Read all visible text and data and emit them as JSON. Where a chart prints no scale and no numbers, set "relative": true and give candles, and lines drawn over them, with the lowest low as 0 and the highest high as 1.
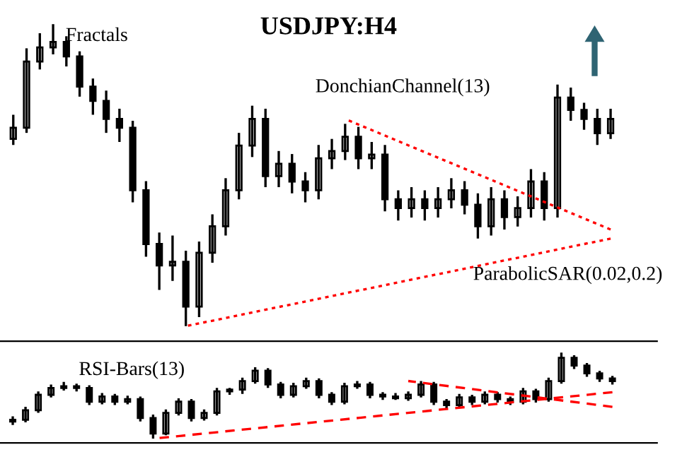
{
  "chart_data": [
    {
      "type": "candlestick",
      "title": "USDJPY:H4",
      "relative": true,
      "categories": [
        null,
        null,
        null,
        null,
        null,
        null,
        null,
        null,
        null,
        null,
        null,
        null,
        null,
        null,
        null,
        null,
        null,
        null,
        null,
        null,
        null,
        null,
        null,
        null,
        null,
        null,
        null,
        null,
        null,
        null,
        null,
        null,
        null,
        null,
        null,
        null,
        null,
        null,
        null,
        null,
        null,
        null,
        null,
        null,
        null,
        null
      ],
      "ohlc": [
        [
          0.62,
          0.7,
          0.6,
          0.657
        ],
        [
          0.657,
          0.92,
          0.64,
          0.876
        ],
        [
          0.876,
          0.97,
          0.85,
          0.923
        ],
        [
          0.923,
          1.0,
          0.9,
          0.941
        ],
        [
          0.941,
          0.96,
          0.86,
          0.893
        ],
        [
          0.893,
          0.91,
          0.76,
          0.793
        ],
        [
          0.793,
          0.82,
          0.7,
          0.746
        ],
        [
          0.746,
          0.78,
          0.64,
          0.686
        ],
        [
          0.686,
          0.72,
          0.61,
          0.657
        ],
        [
          0.657,
          0.68,
          0.41,
          0.45
        ],
        [
          0.45,
          0.48,
          0.23,
          0.272
        ],
        [
          0.272,
          0.31,
          0.12,
          0.201
        ],
        [
          0.201,
          0.3,
          0.15,
          0.213
        ],
        [
          0.213,
          0.25,
          0.0,
          0.065
        ],
        [
          0.065,
          0.28,
          0.03,
          0.243
        ],
        [
          0.243,
          0.37,
          0.21,
          0.331
        ],
        [
          0.331,
          0.49,
          0.3,
          0.45
        ],
        [
          0.45,
          0.64,
          0.42,
          0.598
        ],
        [
          0.598,
          0.73,
          0.56,
          0.686
        ],
        [
          0.686,
          0.72,
          0.46,
          0.497
        ],
        [
          0.497,
          0.58,
          0.46,
          0.538
        ],
        [
          0.538,
          0.57,
          0.44,
          0.479
        ],
        [
          0.479,
          0.51,
          0.41,
          0.45
        ],
        [
          0.45,
          0.6,
          0.42,
          0.556
        ],
        [
          0.556,
          0.62,
          0.52,
          0.58
        ],
        [
          0.58,
          0.67,
          0.55,
          0.627
        ],
        [
          0.627,
          0.66,
          0.52,
          0.556
        ],
        [
          0.556,
          0.61,
          0.52,
          0.568
        ],
        [
          0.568,
          0.6,
          0.38,
          0.42
        ],
        [
          0.42,
          0.45,
          0.35,
          0.391
        ],
        [
          0.391,
          0.46,
          0.36,
          0.42
        ],
        [
          0.42,
          0.45,
          0.35,
          0.391
        ],
        [
          0.391,
          0.46,
          0.36,
          0.42
        ],
        [
          0.42,
          0.49,
          0.39,
          0.45
        ],
        [
          0.45,
          0.48,
          0.37,
          0.402
        ],
        [
          0.402,
          0.44,
          0.29,
          0.331
        ],
        [
          0.331,
          0.46,
          0.3,
          0.42
        ],
        [
          0.42,
          0.45,
          0.32,
          0.361
        ],
        [
          0.361,
          0.43,
          0.33,
          0.391
        ],
        [
          0.391,
          0.52,
          0.36,
          0.479
        ],
        [
          0.479,
          0.51,
          0.35,
          0.391
        ],
        [
          0.391,
          0.8,
          0.36,
          0.757
        ],
        [
          0.757,
          0.79,
          0.68,
          0.716
        ],
        [
          0.716,
          0.74,
          0.65,
          0.686
        ],
        [
          0.686,
          0.72,
          0.6,
          0.639
        ],
        [
          0.639,
          0.72,
          0.62,
          0.686
        ]
      ],
      "series": [
        {
          "type": "line",
          "values": [
            null,
            null,
            null,
            null,
            null,
            null,
            null,
            null,
            null,
            null,
            null,
            null,
            null,
            0.0,
            null,
            null,
            null,
            null,
            null,
            null,
            null,
            null,
            null,
            null,
            null,
            null,
            null,
            null,
            null,
            null,
            null,
            null,
            null,
            null,
            null,
            null,
            null,
            null,
            null,
            null,
            null,
            null,
            null,
            null,
            null,
            0.29
          ],
          "color": "#ff0000",
          "line_style": "dotted"
        },
        {
          "type": "line",
          "values": [
            null,
            null,
            null,
            null,
            null,
            null,
            null,
            null,
            null,
            null,
            null,
            null,
            null,
            null,
            null,
            null,
            null,
            null,
            null,
            null,
            null,
            null,
            null,
            null,
            null,
            0.686,
            null,
            null,
            null,
            null,
            null,
            null,
            null,
            null,
            null,
            null,
            null,
            null,
            null,
            null,
            null,
            null,
            null,
            null,
            null,
            0.32
          ],
          "color": "#ff0000",
          "line_style": "dotted"
        }
      ],
      "annotations": [
        "Fractals",
        "DonchianChannel(13)",
        "ParabolicSAR(0.02,0.2)"
      ]
    },
    {
      "type": "candlestick",
      "relative": true,
      "categories": [
        null,
        null,
        null,
        null,
        null,
        null,
        null,
        null,
        null,
        null,
        null,
        null,
        null,
        null,
        null,
        null,
        null,
        null,
        null,
        null,
        null,
        null,
        null,
        null,
        null,
        null,
        null,
        null,
        null,
        null,
        null,
        null,
        null,
        null,
        null,
        null,
        null,
        null,
        null,
        null,
        null,
        null,
        null,
        null,
        null,
        null,
        null,
        null
      ],
      "ohlc": [
        [
          0.2,
          0.26,
          0.16,
          0.22
        ],
        [
          0.22,
          0.37,
          0.19,
          0.33
        ],
        [
          0.33,
          0.55,
          0.3,
          0.51
        ],
        [
          0.51,
          0.63,
          0.48,
          0.59
        ],
        [
          0.59,
          0.66,
          0.56,
          0.61
        ],
        [
          0.61,
          0.64,
          0.55,
          0.59
        ],
        [
          0.59,
          0.62,
          0.39,
          0.43
        ],
        [
          0.43,
          0.53,
          0.4,
          0.49
        ],
        [
          0.49,
          0.52,
          0.39,
          0.43
        ],
        [
          0.43,
          0.5,
          0.4,
          0.46
        ],
        [
          0.46,
          0.49,
          0.2,
          0.24
        ],
        [
          0.24,
          0.28,
          0.0,
          0.06
        ],
        [
          0.06,
          0.34,
          0.04,
          0.3
        ],
        [
          0.3,
          0.47,
          0.27,
          0.43
        ],
        [
          0.43,
          0.46,
          0.2,
          0.24
        ],
        [
          0.24,
          0.34,
          0.21,
          0.3
        ],
        [
          0.3,
          0.59,
          0.27,
          0.55
        ],
        [
          0.55,
          0.59,
          0.51,
          0.57
        ],
        [
          0.57,
          0.71,
          0.52,
          0.67
        ],
        [
          0.67,
          0.83,
          0.64,
          0.79
        ],
        [
          0.79,
          0.82,
          0.59,
          0.63
        ],
        [
          0.63,
          0.66,
          0.47,
          0.51
        ],
        [
          0.51,
          0.65,
          0.48,
          0.61
        ],
        [
          0.61,
          0.71,
          0.58,
          0.67
        ],
        [
          0.67,
          0.7,
          0.47,
          0.51
        ],
        [
          0.51,
          0.54,
          0.39,
          0.43
        ],
        [
          0.43,
          0.65,
          0.4,
          0.61
        ],
        [
          0.61,
          0.67,
          0.58,
          0.63
        ],
        [
          0.63,
          0.66,
          0.47,
          0.51
        ],
        [
          0.51,
          0.54,
          0.45,
          0.49
        ],
        [
          0.49,
          0.53,
          0.45,
          0.47
        ],
        [
          0.47,
          0.55,
          0.44,
          0.51
        ],
        [
          0.51,
          0.67,
          0.48,
          0.63
        ],
        [
          0.63,
          0.66,
          0.39,
          0.43
        ],
        [
          0.43,
          0.46,
          0.35,
          0.39
        ],
        [
          0.39,
          0.52,
          0.36,
          0.48
        ],
        [
          0.48,
          0.51,
          0.39,
          0.43
        ],
        [
          0.43,
          0.55,
          0.4,
          0.51
        ],
        [
          0.51,
          0.54,
          0.42,
          0.46
        ],
        [
          0.46,
          0.49,
          0.39,
          0.43
        ],
        [
          0.43,
          0.59,
          0.4,
          0.55
        ],
        [
          0.55,
          0.58,
          0.42,
          0.46
        ],
        [
          0.46,
          0.71,
          0.43,
          0.67
        ],
        [
          0.67,
          1.0,
          0.64,
          0.94
        ],
        [
          0.94,
          0.97,
          0.81,
          0.85
        ],
        [
          0.85,
          0.88,
          0.72,
          0.76
        ],
        [
          0.76,
          0.79,
          0.66,
          0.7
        ],
        [
          0.7,
          0.73,
          0.63,
          0.67
        ]
      ],
      "series": [
        {
          "type": "line",
          "values": [
            null,
            null,
            null,
            null,
            null,
            null,
            null,
            null,
            null,
            null,
            null,
            0.0,
            null,
            null,
            null,
            null,
            null,
            null,
            null,
            null,
            null,
            null,
            null,
            null,
            null,
            null,
            null,
            null,
            null,
            null,
            null,
            null,
            null,
            null,
            null,
            null,
            null,
            null,
            null,
            null,
            null,
            null,
            null,
            null,
            null,
            null,
            null,
            0.54
          ],
          "color": "#ff0000",
          "line_style": "dashed"
        },
        {
          "type": "line",
          "values": [
            null,
            null,
            null,
            null,
            null,
            null,
            null,
            null,
            null,
            null,
            null,
            null,
            null,
            null,
            null,
            null,
            null,
            null,
            null,
            null,
            null,
            null,
            null,
            null,
            null,
            null,
            null,
            null,
            null,
            null,
            null,
            0.67,
            null,
            null,
            null,
            null,
            null,
            null,
            null,
            null,
            null,
            null,
            null,
            null,
            null,
            null,
            null,
            0.37
          ],
          "color": "#ff0000",
          "line_style": "dashed"
        }
      ],
      "annotations": [
        "RSI-Bars(13)"
      ]
    }
  ]
}
